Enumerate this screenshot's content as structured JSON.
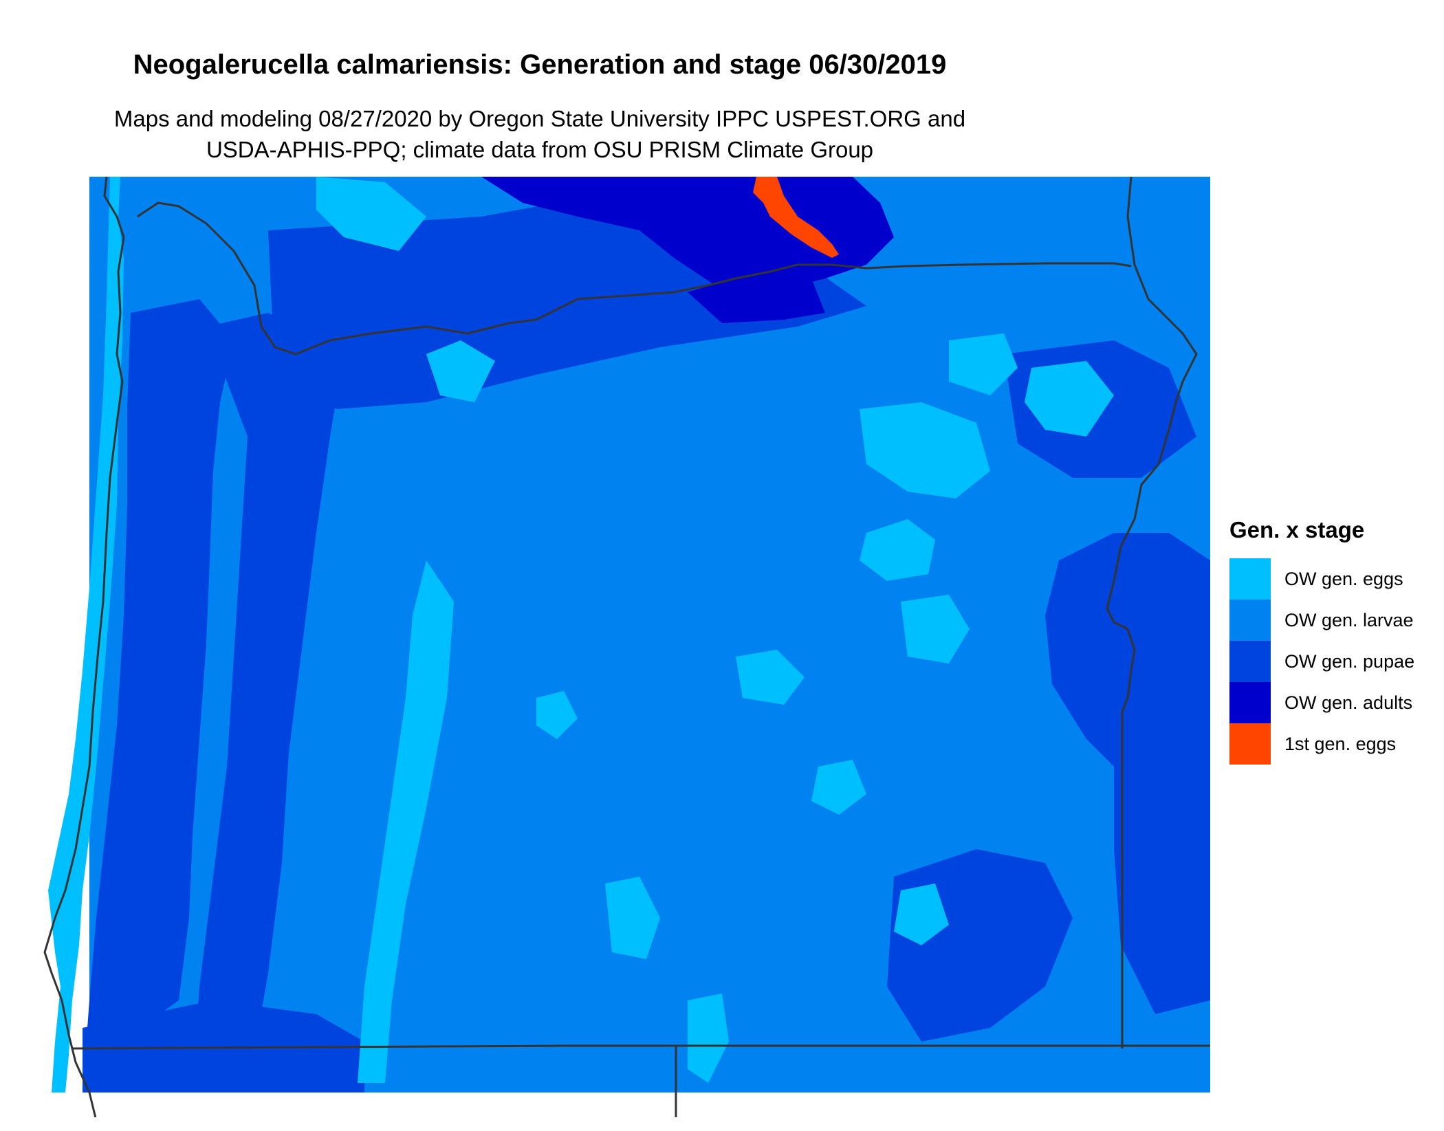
{
  "map": {
    "title": "Neogalerucella calmariensis: Generation and stage 06/30/2019",
    "subtitle_line1": "Maps and modeling 08/27/2020 by Oregon State University IPPC USPEST.ORG and",
    "subtitle_line2": "USDA-APHIS-PPQ; climate data from OSU PRISM Climate Group"
  },
  "legend": {
    "title": "Gen. x stage",
    "items": [
      {
        "label": "OW gen. eggs",
        "color": "#00bfff"
      },
      {
        "label": "OW gen. larvae",
        "color": "#0082f0"
      },
      {
        "label": "OW gen. pupae",
        "color": "#0044e0"
      },
      {
        "label": "OW gen. adults",
        "color": "#0000cc"
      },
      {
        "label": "1st gen. eggs",
        "color": "#ff4500"
      }
    ]
  },
  "colors": {
    "boundary": "#333333",
    "background": "#ffffff"
  }
}
